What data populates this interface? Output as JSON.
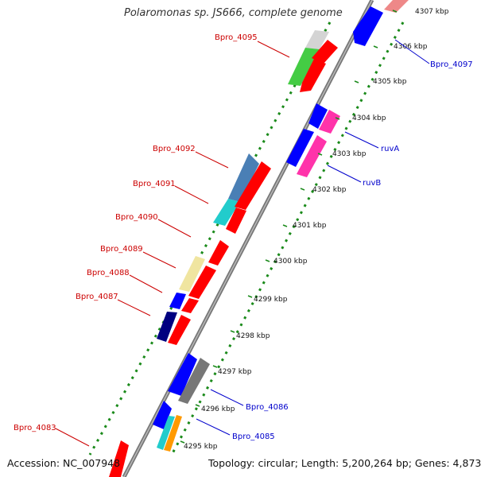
{
  "title": "Polaromonas sp. JS666, complete genome",
  "accession": "Accession: NC_007948",
  "summary": "Topology: circular; Length: 5,200,264 bp; Genes: 4,873",
  "colors": {
    "backbone": "#808080",
    "tick_dots": "#1a8a1a",
    "gene_label_red": "#cc0000",
    "gene_label_blue": "#0000cc",
    "forward_gene": "#ff0000",
    "reverse_gene": "#0000ff"
  },
  "ticks": [
    "4295 kbp",
    "4296 kbp",
    "4297 kbp",
    "4298 kbp",
    "4299 kbp",
    "4300 kbp",
    "4301 kbp",
    "4302 kbp",
    "4303 kbp",
    "4304 kbp",
    "4305 kbp",
    "4306 kbp",
    "4307 kbp"
  ],
  "gene_labels": {
    "left": [
      "Bpro_4095",
      "Bpro_4092",
      "Bpro_4091",
      "Bpro_4090",
      "Bpro_4089",
      "Bpro_4088",
      "Bpro_4087",
      "Bpro_4083"
    ],
    "right": [
      "Bpro_4097",
      "ruvA",
      "ruvB",
      "Bpro_4086",
      "Bpro_4085"
    ]
  }
}
